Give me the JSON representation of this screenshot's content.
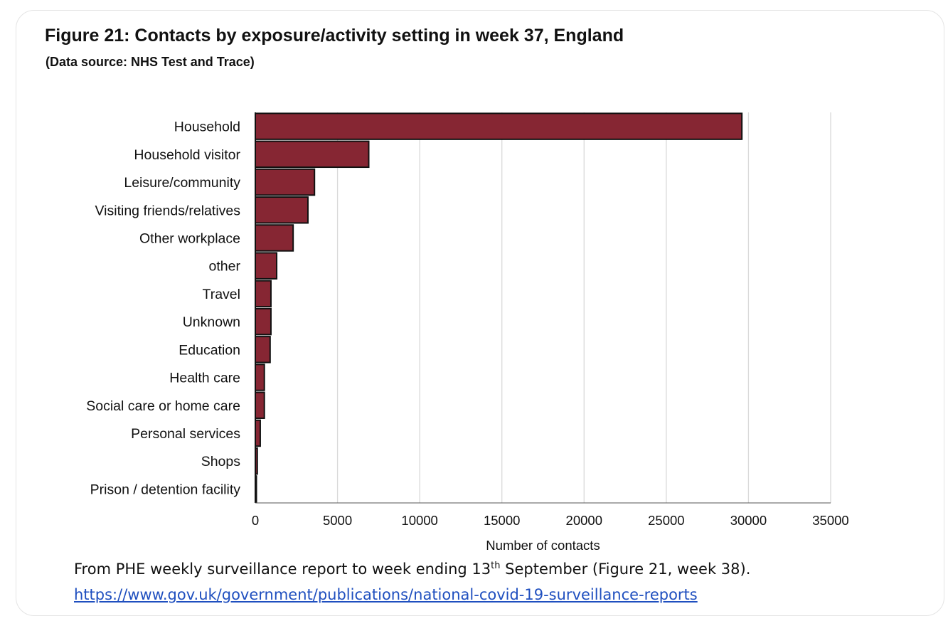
{
  "figure": {
    "title": "Figure 21: Contacts by exposure/activity setting in week 37, England",
    "subtitle": "(Data source: NHS Test and Trace)"
  },
  "chart_data": {
    "type": "bar",
    "orientation": "horizontal",
    "title": "Figure 21: Contacts by exposure/activity setting in week 37, England",
    "subtitle": "(Data source: NHS Test and Trace)",
    "xlabel": "Number of contacts",
    "ylabel": "",
    "xlim": [
      0,
      35000
    ],
    "xticks": [
      0,
      5000,
      10000,
      15000,
      20000,
      25000,
      30000,
      35000
    ],
    "grid": "vertical",
    "legend": "none",
    "bar_color": "#862633",
    "categories": [
      "Household",
      "Household visitor",
      "Leisure/community",
      "Visiting friends/relatives",
      "Other workplace",
      "other",
      "Travel",
      "Unknown",
      "Education",
      "Health care",
      "Social care or home care",
      "Personal services",
      "Shops",
      "Prison / detention facility"
    ],
    "values": [
      29600,
      6900,
      3600,
      3200,
      2300,
      1300,
      950,
      950,
      900,
      550,
      550,
      300,
      120,
      60
    ]
  },
  "caption": {
    "prefix": "From  PHE weekly surveillance report to week ending 13",
    "sup": "th",
    "suffix": " September  (Figure 21, week 38)."
  },
  "link": {
    "text": "https://www.gov.uk/government/publications/national-covid-19-surveillance-reports"
  }
}
